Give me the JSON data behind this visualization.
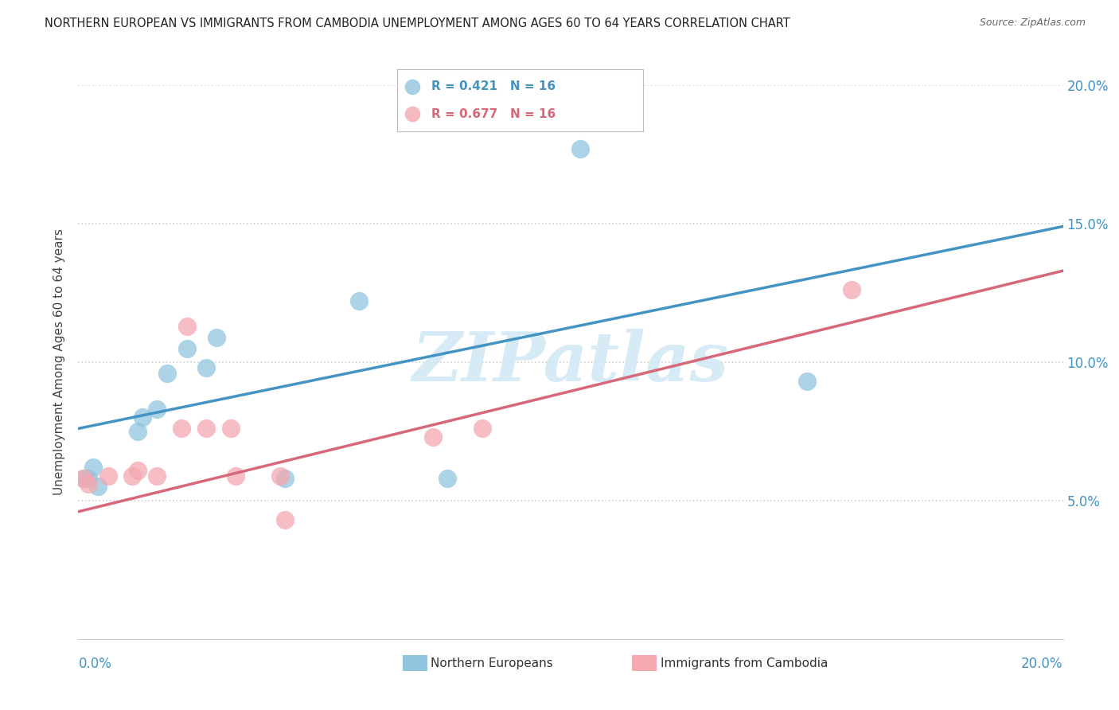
{
  "title": "NORTHERN EUROPEAN VS IMMIGRANTS FROM CAMBODIA UNEMPLOYMENT AMONG AGES 60 TO 64 YEARS CORRELATION CHART",
  "source": "Source: ZipAtlas.com",
  "ylabel": "Unemployment Among Ages 60 to 64 years",
  "xlim": [
    0.0,
    0.2
  ],
  "ylim": [
    0.0,
    0.2
  ],
  "xticks": [
    0.0,
    0.05,
    0.1,
    0.15,
    0.2
  ],
  "yticks": [
    0.05,
    0.1,
    0.15,
    0.2
  ],
  "xticklabels_bottom_left": "0.0%",
  "xticklabels_bottom_right": "20.0%",
  "yticklabels": [
    "5.0%",
    "10.0%",
    "15.0%",
    "20.0%"
  ],
  "blue_label": "Northern Europeans",
  "pink_label": "Immigrants from Cambodia",
  "blue_R": "0.421",
  "blue_N": "16",
  "pink_R": "0.677",
  "pink_N": "16",
  "blue_color": "#92c5de",
  "pink_color": "#f4a8b0",
  "blue_line_color": "#4393c3",
  "pink_line_color": "#d6687a",
  "watermark_color": "#d0e8f5",
  "blue_points": [
    [
      0.002,
      0.058
    ],
    [
      0.003,
      0.062
    ],
    [
      0.004,
      0.055
    ],
    [
      0.012,
      0.075
    ],
    [
      0.013,
      0.08
    ],
    [
      0.016,
      0.083
    ],
    [
      0.018,
      0.096
    ],
    [
      0.022,
      0.105
    ],
    [
      0.026,
      0.098
    ],
    [
      0.028,
      0.109
    ],
    [
      0.042,
      0.058
    ],
    [
      0.057,
      0.122
    ],
    [
      0.075,
      0.058
    ],
    [
      0.102,
      0.177
    ],
    [
      0.148,
      0.093
    ],
    [
      0.001,
      0.058
    ]
  ],
  "pink_points": [
    [
      0.001,
      0.058
    ],
    [
      0.002,
      0.056
    ],
    [
      0.006,
      0.059
    ],
    [
      0.011,
      0.059
    ],
    [
      0.012,
      0.061
    ],
    [
      0.016,
      0.059
    ],
    [
      0.021,
      0.076
    ],
    [
      0.022,
      0.113
    ],
    [
      0.026,
      0.076
    ],
    [
      0.031,
      0.076
    ],
    [
      0.032,
      0.059
    ],
    [
      0.041,
      0.059
    ],
    [
      0.042,
      0.043
    ],
    [
      0.072,
      0.073
    ],
    [
      0.082,
      0.076
    ],
    [
      0.157,
      0.126
    ]
  ],
  "blue_trendline": [
    [
      0.0,
      0.076
    ],
    [
      0.2,
      0.149
    ]
  ],
  "pink_trendline": [
    [
      0.0,
      0.046
    ],
    [
      0.2,
      0.133
    ]
  ],
  "bg_color": "#ffffff",
  "grid_color": "#d0d0d0"
}
